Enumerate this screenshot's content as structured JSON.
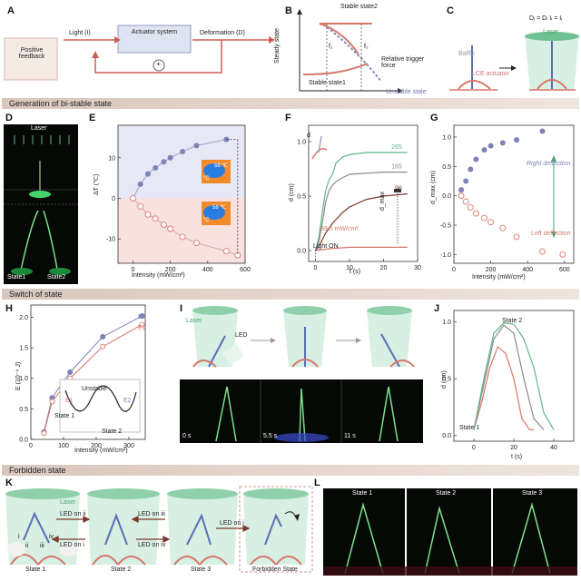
{
  "panels": {
    "a": "A",
    "b": "B",
    "c": "C",
    "d": "D",
    "e": "E",
    "f": "F",
    "g": "G",
    "h": "H",
    "i": "I",
    "j": "J",
    "k": "K",
    "l": "L"
  },
  "sections": {
    "generation": "Generation of bi-stable state",
    "switch": "Switch of state",
    "forbidden": "Forbidden state"
  },
  "panel_a": {
    "light": "Light (I)",
    "actuator": "Actuator system",
    "deformation": "Deformation (D)",
    "feedback": "Positive feedback",
    "plus": "+"
  },
  "panel_b": {
    "stable2": "Stable state2",
    "stable1": "Stable state1",
    "unstable": "Unstable state",
    "ylabel": "Steady state",
    "xlabel": "Relative trigger force",
    "f1": "f₁",
    "f2": "f₂"
  },
  "panel_c": {
    "equation": "Dᵢ = Dᵢ   Iᵢ = Iᵢ",
    "laser": "Laser",
    "baffle": "Baffle",
    "lce": "LCE actuator"
  },
  "panel_d": {
    "laser": "Laser",
    "state1": "State1",
    "state2": "State2"
  },
  "panel_e": {
    "xlabel": "Intensity (mW/cm²)",
    "ylabel": "ΔT (℃)",
    "xticks": [
      "0",
      "200",
      "400",
      "600"
    ],
    "yticks": [
      "10",
      "0",
      "-10"
    ],
    "inset_hot": "58 ℃",
    "inset_cold": "°C",
    "inset_cold2": "58 ℃",
    "inset_cold3": "°C"
  },
  "panel_f": {
    "xlabel": "t (s)",
    "ylabel": "d (cm)",
    "xticks": [
      "0",
      "10",
      "20",
      "30"
    ],
    "yticks": [
      "0.0",
      "0.5",
      "1.0"
    ],
    "labels": [
      "265",
      "165",
      "96"
    ],
    "annotation": "39.5 mW/cm²",
    "light_on": "Light ON",
    "dmax": "d_max",
    "d": "d"
  },
  "panel_g": {
    "xlabel": "Intensity (mW/cm²)",
    "ylabel": "d_max (cm)",
    "xticks": [
      "0",
      "200",
      "400",
      "600"
    ],
    "yticks": [
      "1.0",
      "0.5",
      "0.0",
      "-0.5",
      "-1.0"
    ],
    "right": "Right deflection",
    "left": "Left deflection"
  },
  "panel_h": {
    "xlabel": "Intensity (mW/cm²)",
    "ylabel": "E (10⁻⁴ J)",
    "xticks": [
      "0",
      "100",
      "200",
      "300"
    ],
    "yticks": [
      "0.0",
      "0.5",
      "1.0",
      "1.5",
      "2.0"
    ],
    "series": [
      "E2",
      "E1"
    ],
    "inset_unstable": "Unstable",
    "inset_e1": "E1",
    "inset_e2": "E2",
    "inset_s1": "State 1",
    "inset_s2": "State 2"
  },
  "panel_i": {
    "laser": "Laser",
    "led": "LED",
    "times": [
      "0 s",
      "5.5 s",
      "11 s"
    ]
  },
  "panel_j": {
    "xlabel": "t (s)",
    "ylabel": "d (cm)",
    "xticks": [
      "0",
      "20",
      "40"
    ],
    "yticks": [
      "0.0",
      "0.5",
      "1.0"
    ],
    "state2": "State 2",
    "state1": "State 1"
  },
  "panel_k": {
    "laser": "Laser",
    "states": [
      "State 1",
      "State 2",
      "State 3",
      "Forbidden State"
    ],
    "led_labels": [
      "LED on ii",
      "LED on i",
      "LED on iii",
      "LED on iv",
      "LED on i"
    ],
    "roman": [
      "i",
      "ii",
      "iii",
      "iv"
    ]
  },
  "panel_l": {
    "states": [
      "State 1",
      "State 2",
      "State 3"
    ]
  },
  "chart_data": [
    {
      "id": "E",
      "type": "scatter",
      "xlabel": "Intensity (mW/cm²)",
      "ylabel": "ΔT (℃)",
      "xlim": [
        -80,
        600
      ],
      "ylim": [
        -16,
        18
      ],
      "series": [
        {
          "name": "",
          "x": [
            0,
            40,
            80,
            120,
            165,
            200,
            265,
            340,
            500
          ],
          "y": [
            0,
            3.5,
            6,
            7.5,
            9,
            10,
            11.5,
            13,
            14.5
          ],
          "filled": true
        },
        {
          "name": "",
          "x": [
            0,
            40,
            80,
            120,
            165,
            200,
            265,
            340,
            500,
            560
          ],
          "y": [
            0,
            -2,
            -4,
            -5,
            -6.5,
            -7.5,
            -9.5,
            -11,
            -13,
            -14
          ],
          "filled": false
        }
      ]
    },
    {
      "id": "F",
      "type": "line",
      "xlabel": "t (s)",
      "ylabel": "d (cm)",
      "xlim": [
        -2,
        30
      ],
      "ylim": [
        -0.1,
        1.15
      ],
      "series": [
        {
          "name": "265",
          "color": "#5fb58a",
          "x": [
            0,
            1,
            2,
            3,
            4,
            5,
            6,
            8,
            10,
            15,
            20,
            27
          ],
          "y": [
            0,
            0.12,
            0.35,
            0.55,
            0.65,
            0.7,
            0.8,
            0.86,
            0.88,
            0.9,
            0.9,
            0.9
          ]
        },
        {
          "name": "165",
          "color": "#8a8a8a",
          "x": [
            0,
            1,
            2,
            3,
            4,
            5,
            6,
            8,
            10,
            15,
            20,
            27
          ],
          "y": [
            0,
            0.08,
            0.25,
            0.45,
            0.55,
            0.6,
            0.63,
            0.67,
            0.7,
            0.71,
            0.72,
            0.72
          ]
        },
        {
          "name": "96",
          "color": "#7a3a2a",
          "x": [
            0,
            1,
            2,
            3,
            5,
            8,
            10,
            15,
            20,
            27
          ],
          "y": [
            0,
            0.04,
            0.1,
            0.16,
            0.25,
            0.35,
            0.4,
            0.47,
            0.5,
            0.52
          ]
        },
        {
          "name": "39.5 mW/cm²",
          "color": "#d7776b",
          "x": [
            0,
            5,
            10,
            20,
            27
          ],
          "y": [
            0,
            0.02,
            0.03,
            0.03,
            0.03
          ]
        }
      ]
    },
    {
      "id": "G",
      "type": "scatter",
      "xlabel": "Intensity (mW/cm²)",
      "ylabel": "d_max (cm)",
      "xlim": [
        0,
        650
      ],
      "ylim": [
        -1.15,
        1.2
      ],
      "series": [
        {
          "name": "Right deflection",
          "x": [
            40,
            65,
            90,
            120,
            165,
            200,
            265,
            340,
            480
          ],
          "y": [
            0.1,
            0.25,
            0.45,
            0.62,
            0.78,
            0.85,
            0.9,
            0.95,
            1.1
          ]
        },
        {
          "name": "Left deflection",
          "x": [
            40,
            65,
            90,
            120,
            165,
            200,
            265,
            340,
            480,
            590
          ],
          "y": [
            0,
            -0.1,
            -0.2,
            -0.3,
            -0.38,
            -0.45,
            -0.55,
            -0.7,
            -0.95,
            -1.0
          ]
        }
      ]
    },
    {
      "id": "H",
      "type": "line",
      "xlabel": "Intensity (mW/cm²)",
      "ylabel": "E (10⁻⁴ J)",
      "xlim": [
        0,
        350
      ],
      "ylim": [
        0,
        2.2
      ],
      "series": [
        {
          "name": "E2",
          "x": [
            40,
            65,
            120,
            220,
            340
          ],
          "y": [
            0.12,
            0.68,
            1.1,
            1.68,
            2.02
          ]
        },
        {
          "name": "E1",
          "x": [
            40,
            65,
            120,
            220,
            340
          ],
          "y": [
            0.1,
            0.62,
            1.0,
            1.52,
            1.88
          ]
        }
      ]
    },
    {
      "id": "J",
      "type": "line",
      "xlabel": "t (s)",
      "ylabel": "d (cm)",
      "xlim": [
        -10,
        50
      ],
      "ylim": [
        -0.05,
        1.1
      ],
      "series": [
        {
          "name": "",
          "color": "#d7776b",
          "x": [
            0,
            4,
            8,
            12,
            16,
            20,
            24,
            28,
            30
          ],
          "y": [
            0.05,
            0.3,
            0.6,
            0.78,
            0.72,
            0.5,
            0.15,
            0.05,
            0.05
          ]
        },
        {
          "name": "",
          "color": "#8a8a8a",
          "x": [
            0,
            5,
            10,
            15,
            20,
            25,
            30,
            35
          ],
          "y": [
            0.05,
            0.45,
            0.85,
            0.97,
            0.9,
            0.5,
            0.15,
            0.05
          ]
        },
        {
          "name": "",
          "color": "#5fb58a",
          "x": [
            0,
            5,
            10,
            15,
            20,
            25,
            30,
            35,
            40
          ],
          "y": [
            0.05,
            0.5,
            0.9,
            0.99,
            0.98,
            0.85,
            0.6,
            0.2,
            0.05
          ]
        }
      ]
    }
  ]
}
